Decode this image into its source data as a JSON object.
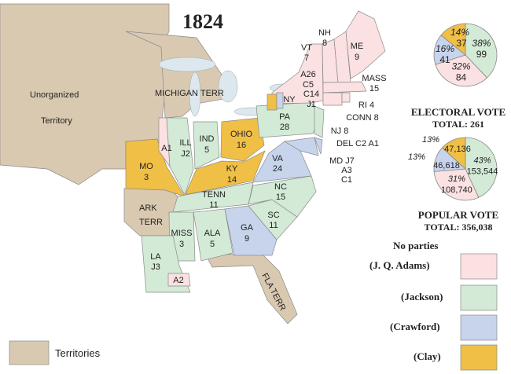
{
  "title": "1824",
  "colors": {
    "adams": "#fbe1e1",
    "jackson": "#d3ead6",
    "crawford": "#c7d4ec",
    "clay": "#f0bf45",
    "territory": "#d9c9b1"
  },
  "territories": {
    "unorganized_1": "Unorganized",
    "unorganized_2": "Territory",
    "michigan": "MICHIGAN TERR",
    "ark_1": "ARK",
    "ark_2": "TERR",
    "fla": "FLA TERR"
  },
  "states": {
    "me": [
      "ME",
      "9"
    ],
    "nh": [
      "NH",
      "8"
    ],
    "vt": [
      "VT",
      "7"
    ],
    "ny": [
      "NY",
      "A26",
      "C5",
      "C14",
      "J1"
    ],
    "mass": [
      "MASS",
      "15"
    ],
    "ri": "RI 4",
    "conn": "CONN 8",
    "nj": "NJ 8",
    "del": "DEL C2 A1",
    "md": [
      "MD J7",
      "A3",
      "C1"
    ],
    "pa": [
      "PA",
      "28"
    ],
    "ohio": [
      "OHIO",
      "16"
    ],
    "ind": [
      "IND",
      "5"
    ],
    "ill": [
      "ILL",
      "J2"
    ],
    "ill_a": "A1",
    "mo": [
      "MO",
      "3"
    ],
    "ky": [
      "KY",
      "14"
    ],
    "va": [
      "VA",
      "24"
    ],
    "nc": [
      "NC",
      "15"
    ],
    "tenn": [
      "TENN",
      "11"
    ],
    "sc": [
      "SC",
      "11"
    ],
    "ga": [
      "GA",
      "9"
    ],
    "ala": [
      "ALA",
      "5"
    ],
    "miss": [
      "MISS",
      "3"
    ],
    "la": [
      "LA",
      "J3"
    ],
    "la_a": "A2"
  },
  "electoral": {
    "label": "ELECTORAL VOTE",
    "total": "TOTAL:  261",
    "slices": [
      {
        "party": "jackson",
        "pct": "38%",
        "value": "99",
        "count": 99
      },
      {
        "party": "adams",
        "pct": "32%",
        "value": "84",
        "count": 84
      },
      {
        "party": "crawford",
        "pct": "16%",
        "value": "41",
        "count": 41
      },
      {
        "party": "clay",
        "pct": "14%",
        "value": "37",
        "count": 37
      }
    ]
  },
  "popular": {
    "label": "POPULAR  VOTE",
    "total": "TOTAL:  356,038",
    "slices": [
      {
        "party": "jackson",
        "pct": "43%",
        "value": "153,544",
        "count": 153544
      },
      {
        "party": "adams",
        "pct": "31%",
        "value": "108,740",
        "count": 108740
      },
      {
        "party": "crawford",
        "pct": "13%",
        "value": "46,618",
        "count": 46618
      },
      {
        "party": "clay",
        "pct": "13%",
        "value": "47,136",
        "count": 47136
      }
    ]
  },
  "legend": {
    "heading": "No parties",
    "items": [
      {
        "label": "(J. Q. Adams)",
        "party": "adams"
      },
      {
        "label": "(Jackson)",
        "party": "jackson"
      },
      {
        "label": "(Crawford)",
        "party": "crawford"
      },
      {
        "label": "(Clay)",
        "party": "clay"
      }
    ],
    "territories": "Territories"
  }
}
